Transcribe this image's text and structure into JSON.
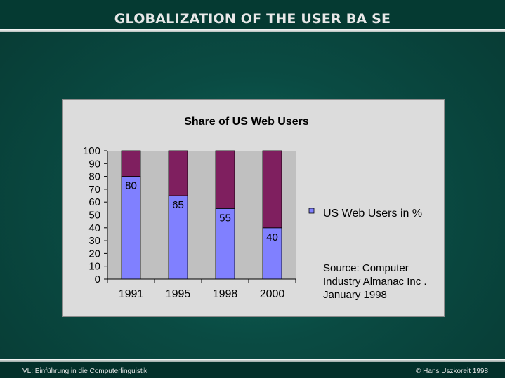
{
  "slide": {
    "title": "GLOBALIZATION  OF THE USER BA SE",
    "footer_left": "VL: Einführung in die Computerlinguistik",
    "footer_right": "© Hans Uszkoreit 1998"
  },
  "chart_data": {
    "type": "bar",
    "stacked": true,
    "title": "Share of US Web Users",
    "xlabel": "",
    "ylabel": "",
    "categories": [
      "1991",
      "1995",
      "1998",
      "2000"
    ],
    "ylim": [
      0,
      100
    ],
    "yticks": [
      0,
      10,
      20,
      30,
      40,
      50,
      60,
      70,
      80,
      90,
      100
    ],
    "series": [
      {
        "name": "US Web Users in %",
        "values": [
          80,
          65,
          55,
          40
        ],
        "color": "#8080ff",
        "data_labels": [
          "80",
          "65",
          "55",
          "40"
        ]
      },
      {
        "values": [
          20,
          35,
          45,
          60
        ],
        "color": "#7f1f5f"
      }
    ],
    "legend_position": "right",
    "annotation": [
      "Source: Computer",
      "Industry Almanac Inc  .",
      "January  1998"
    ],
    "plot_background": "#c0c0c0",
    "grid": false
  }
}
